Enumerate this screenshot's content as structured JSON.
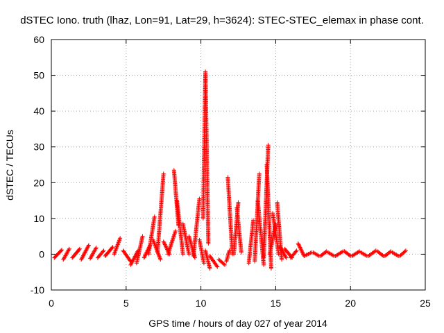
{
  "chart_data": {
    "type": "scatter",
    "title": "dSTEC Iono. truth (lhaz, Lon=91, Lat=29, h=3624): STEC-STEC_elemax in phase cont.",
    "xlabel": "GPS time / hours of day 027 of year 2014",
    "ylabel": "dSTEC  / TECUs",
    "xlim": [
      0,
      25
    ],
    "ylim": [
      -10,
      60
    ],
    "xticks": [
      0,
      5,
      10,
      15,
      20,
      25
    ],
    "yticks": [
      -10,
      0,
      10,
      20,
      30,
      40,
      50,
      60
    ],
    "grid": true,
    "marker": "+",
    "marker_color": "#ff0000",
    "series": [
      {
        "tracks": [
          {
            "t0": 0.2,
            "t1": 0.7,
            "y0": -1.0,
            "y1": 1.2
          },
          {
            "t0": 0.8,
            "t1": 1.2,
            "y0": -1.5,
            "y1": 1.5
          },
          {
            "t0": 1.4,
            "t1": 1.9,
            "y0": -1.0,
            "y1": 1.5
          },
          {
            "t0": 2.0,
            "t1": 2.5,
            "y0": -1.5,
            "y1": 2.5
          },
          {
            "t0": 2.6,
            "t1": 3.0,
            "y0": -1.2,
            "y1": 1.8
          },
          {
            "t0": 3.1,
            "t1": 3.5,
            "y0": -1.0,
            "y1": 1.0
          },
          {
            "t0": 3.6,
            "t1": 4.1,
            "y0": -0.5,
            "y1": 2.0
          },
          {
            "t0": 4.2,
            "t1": 4.6,
            "y0": 0.0,
            "y1": 4.5
          },
          {
            "t0": 4.8,
            "t1": 5.3,
            "y0": 1.0,
            "y1": -2.0
          },
          {
            "t0": 5.3,
            "t1": 5.8,
            "y0": -3.0,
            "y1": 1.0
          },
          {
            "t0": 5.7,
            "t1": 6.1,
            "y0": -2.5,
            "y1": 5.0
          },
          {
            "t0": 6.2,
            "t1": 6.6,
            "y0": -1.0,
            "y1": 2.5
          },
          {
            "t0": 6.5,
            "t1": 6.9,
            "y0": 0.0,
            "y1": 10.5
          },
          {
            "t0": 6.8,
            "t1": 7.3,
            "y0": 4.0,
            "y1": -1.5
          },
          {
            "t0": 7.1,
            "t1": 7.5,
            "y0": 0.5,
            "y1": 22.5
          },
          {
            "t0": 7.5,
            "t1": 7.9,
            "y0": 3.5,
            "y1": 0.0
          },
          {
            "t0": 7.8,
            "t1": 8.3,
            "y0": 0.0,
            "y1": 6.5
          },
          {
            "t0": 8.2,
            "t1": 8.5,
            "y0": 23.5,
            "y1": 8.0
          },
          {
            "t0": 8.4,
            "t1": 8.8,
            "y0": 15.0,
            "y1": 0.0
          },
          {
            "t0": 8.8,
            "t1": 9.2,
            "y0": 8.5,
            "y1": 0.0
          },
          {
            "t0": 9.2,
            "t1": 9.6,
            "y0": 5.0,
            "y1": -1.0
          },
          {
            "t0": 9.5,
            "t1": 9.9,
            "y0": -0.5,
            "y1": 15.5
          },
          {
            "t0": 9.9,
            "t1": 10.2,
            "y0": 4.0,
            "y1": -2.5
          },
          {
            "t0": 10.15,
            "t1": 10.3,
            "y0": 10.0,
            "y1": 51.0
          },
          {
            "t0": 10.3,
            "t1": 10.5,
            "y0": 51.0,
            "y1": 3.0
          },
          {
            "t0": 10.3,
            "t1": 10.6,
            "y0": 1.0,
            "y1": -4.0
          },
          {
            "t0": 10.6,
            "t1": 11.1,
            "y0": -0.5,
            "y1": -3.5
          },
          {
            "t0": 11.2,
            "t1": 11.6,
            "y0": -1.5,
            "y1": -3.0
          },
          {
            "t0": 11.7,
            "t1": 11.9,
            "y0": -2.0,
            "y1": 1.0
          },
          {
            "t0": 11.8,
            "t1": 12.1,
            "y0": 21.5,
            "y1": 0.0
          },
          {
            "t0": 12.2,
            "t1": 12.5,
            "y0": 0.0,
            "y1": 14.5
          },
          {
            "t0": 12.4,
            "t1": 12.7,
            "y0": 13.0,
            "y1": 0.5
          },
          {
            "t0": 13.2,
            "t1": 13.5,
            "y0": -2.5,
            "y1": 9.5
          },
          {
            "t0": 13.6,
            "t1": 13.9,
            "y0": -2.0,
            "y1": 22.5
          },
          {
            "t0": 13.8,
            "t1": 14.2,
            "y0": 15.0,
            "y1": -3.0
          },
          {
            "t0": 14.2,
            "t1": 14.5,
            "y0": -1.0,
            "y1": 30.5
          },
          {
            "t0": 14.4,
            "t1": 14.7,
            "y0": 25.0,
            "y1": -4.0
          },
          {
            "t0": 14.6,
            "t1": 15.0,
            "y0": 0.0,
            "y1": 8.5
          },
          {
            "t0": 14.8,
            "t1": 15.2,
            "y0": 11.5,
            "y1": 0.0
          },
          {
            "t0": 15.1,
            "t1": 15.4,
            "y0": 14.5,
            "y1": -1.5
          },
          {
            "t0": 15.3,
            "t1": 15.7,
            "y0": 2.0,
            "y1": -1.0
          },
          {
            "t0": 15.6,
            "t1": 16.1,
            "y0": 1.5,
            "y1": -1.0
          },
          {
            "t0": 16.0,
            "t1": 16.4,
            "y0": -1.0,
            "y1": 1.0
          },
          {
            "t0": 16.5,
            "t1": 16.9,
            "y0": 3.0,
            "y1": -0.5
          },
          {
            "t0": 16.9,
            "t1": 17.4,
            "y0": -0.5,
            "y1": 0.5
          },
          {
            "t0": 17.5,
            "t1": 17.9,
            "y0": 0.5,
            "y1": -0.5
          },
          {
            "t0": 18.0,
            "t1": 18.4,
            "y0": -0.5,
            "y1": 0.8
          },
          {
            "t0": 18.5,
            "t1": 18.9,
            "y0": 0.5,
            "y1": -0.5
          },
          {
            "t0": 19.0,
            "t1": 19.5,
            "y0": -0.5,
            "y1": 0.8
          },
          {
            "t0": 19.6,
            "t1": 20.0,
            "y0": 0.8,
            "y1": -0.5
          },
          {
            "t0": 20.1,
            "t1": 20.6,
            "y0": -0.5,
            "y1": 0.8
          },
          {
            "t0": 20.7,
            "t1": 21.1,
            "y0": 0.5,
            "y1": -0.5
          },
          {
            "t0": 21.2,
            "t1": 21.7,
            "y0": -0.5,
            "y1": 1.0
          },
          {
            "t0": 21.8,
            "t1": 22.2,
            "y0": 0.8,
            "y1": -0.5
          },
          {
            "t0": 22.3,
            "t1": 22.7,
            "y0": -0.5,
            "y1": 0.8
          },
          {
            "t0": 22.8,
            "t1": 23.2,
            "y0": 0.5,
            "y1": -0.5
          },
          {
            "t0": 23.3,
            "t1": 23.7,
            "y0": -0.5,
            "y1": 1.0
          }
        ]
      }
    ]
  }
}
